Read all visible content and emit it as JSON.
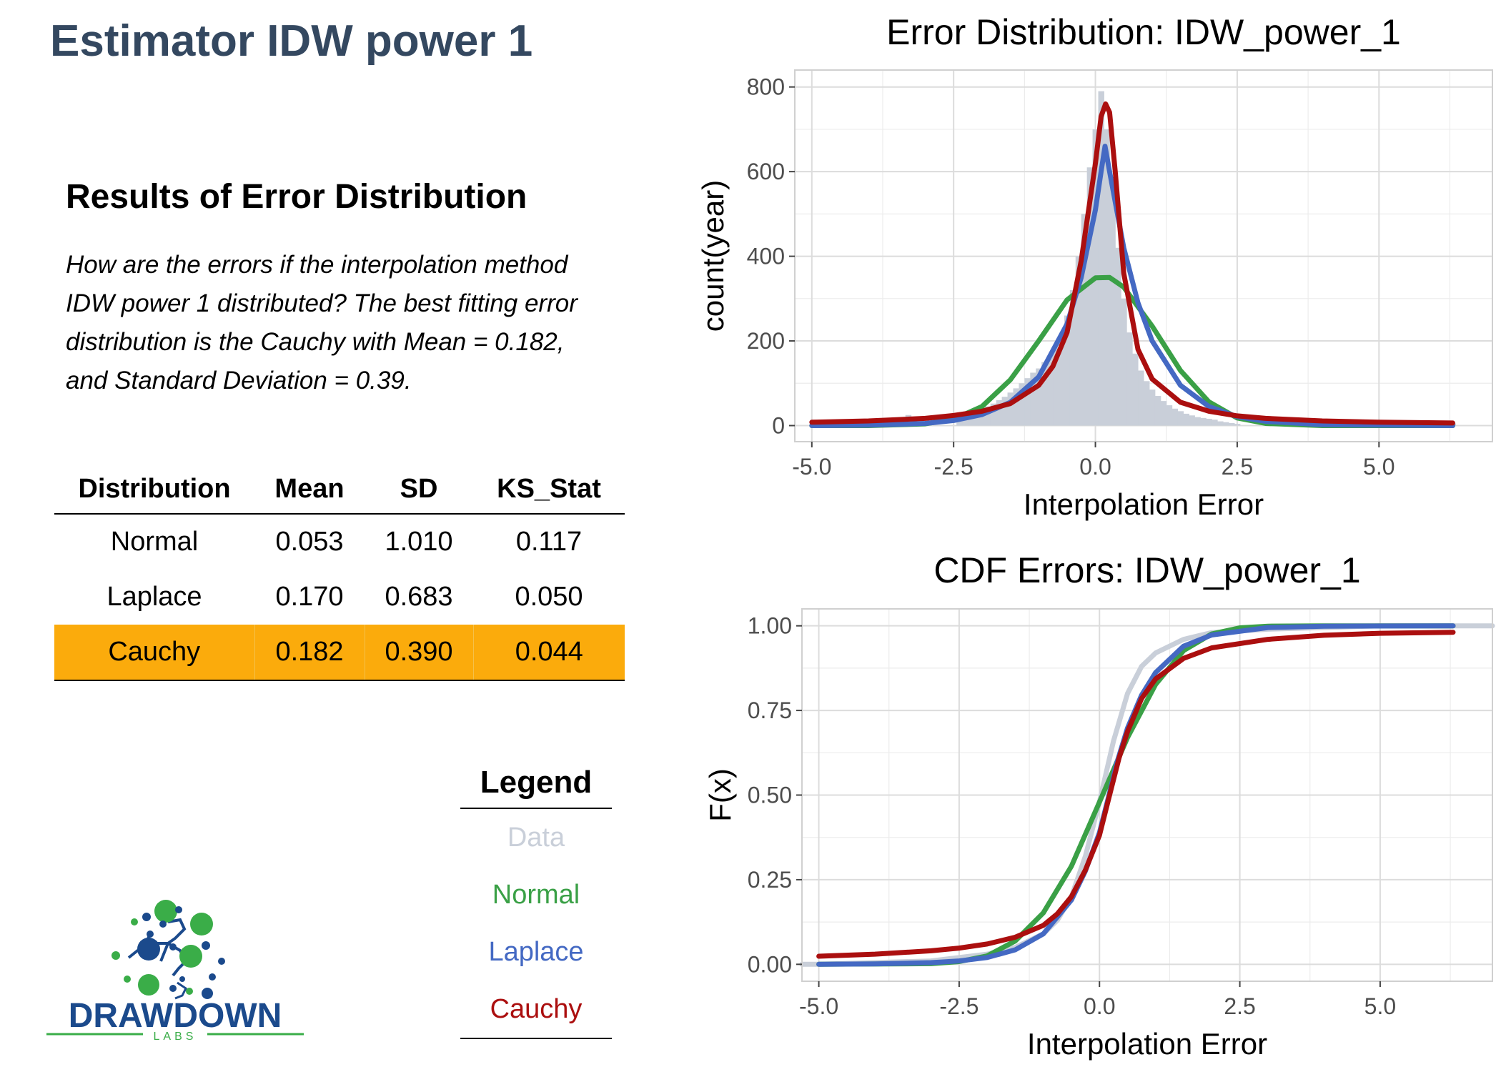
{
  "page": {
    "title": "Estimator IDW power 1"
  },
  "results": {
    "heading": "Results of Error Distribution",
    "description": "How are the errors if the interpolation method IDW power 1 distributed? The best fitting error distribution is the Cauchy with Mean = 0.182, and Standard Deviation = 0.39."
  },
  "table": {
    "headers": [
      "Distribution",
      "Mean",
      "SD",
      "KS_Stat"
    ],
    "rows": [
      [
        "Normal",
        "0.053",
        "1.010",
        "0.117"
      ],
      [
        "Laplace",
        "0.170",
        "0.683",
        "0.050"
      ],
      [
        "Cauchy",
        "0.182",
        "0.390",
        "0.044"
      ]
    ],
    "highlight_color": "#fbab0c"
  },
  "legend": {
    "title": "Legend",
    "items": [
      {
        "label": "Data",
        "color": "#c9cfd9"
      },
      {
        "label": "Normal",
        "color": "#3aa046"
      },
      {
        "label": "Laplace",
        "color": "#4469c3"
      },
      {
        "label": "Cauchy",
        "color": "#ab0f0f"
      }
    ]
  },
  "logo": {
    "text": "DRAWDOWN",
    "subtext": "LABS",
    "primary_color": "#1b4a8c",
    "accent_color": "#3aad48"
  },
  "chart_data": [
    {
      "type": "area",
      "title": "Error Distribution: IDW_power_1",
      "xlabel": "Interpolation Error",
      "ylabel": "count(year)",
      "xlim": [
        -5.3,
        7.0
      ],
      "ylim": [
        -38,
        840
      ],
      "xticks": [
        -5.0,
        -2.5,
        0.0,
        2.5,
        5.0
      ],
      "xtick_labels": [
        "-5.0",
        "-2.5",
        "0.0",
        "2.5",
        "5.0"
      ],
      "yticks": [
        0,
        200,
        400,
        600,
        800
      ],
      "ytick_labels": [
        "0",
        "200",
        "400",
        "600",
        "800"
      ],
      "grid": true,
      "histogram": {
        "color": "#c9cfd9",
        "bin_width": 0.1,
        "x": [
          -4.9,
          -3.3,
          -3.2,
          -2.4,
          -2.3,
          -2.2,
          -2.1,
          -2.0,
          -1.9,
          -1.8,
          -1.7,
          -1.6,
          -1.5,
          -1.4,
          -1.3,
          -1.2,
          -1.1,
          -1.0,
          -0.9,
          -0.8,
          -0.7,
          -0.6,
          -0.5,
          -0.4,
          -0.3,
          -0.2,
          -0.1,
          0.0,
          0.1,
          0.2,
          0.3,
          0.4,
          0.5,
          0.6,
          0.7,
          0.8,
          0.9,
          1.0,
          1.1,
          1.2,
          1.3,
          1.4,
          1.5,
          1.6,
          1.7,
          1.8,
          1.9,
          2.0,
          2.1,
          2.2,
          2.3,
          2.4,
          2.5,
          6.3
        ],
        "counts": [
          5,
          25,
          12,
          20,
          25,
          30,
          35,
          40,
          45,
          52,
          60,
          68,
          78,
          88,
          100,
          112,
          125,
          135,
          150,
          165,
          185,
          215,
          260,
          320,
          400,
          500,
          610,
          700,
          790,
          700,
          580,
          420,
          300,
          220,
          170,
          130,
          105,
          85,
          70,
          58,
          48,
          40,
          34,
          28,
          24,
          20,
          18,
          16,
          14,
          10,
          8,
          6,
          4,
          5
        ]
      },
      "series": [
        {
          "name": "Normal",
          "color": "#3aa046",
          "x": [
            -5.0,
            -4.0,
            -3.0,
            -2.5,
            -2.0,
            -1.5,
            -1.0,
            -0.5,
            0.0,
            0.25,
            0.5,
            1.0,
            1.5,
            2.0,
            2.5,
            3.0,
            4.0,
            5.0,
            6.3
          ],
          "y": [
            0,
            0,
            4,
            15,
            45,
            108,
            200,
            297,
            349,
            350,
            327,
            235,
            130,
            56,
            18,
            5,
            0,
            0,
            0
          ]
        },
        {
          "name": "Laplace",
          "color": "#4469c3",
          "x": [
            -5.0,
            -4.0,
            -3.0,
            -2.5,
            -2.0,
            -1.5,
            -1.0,
            -0.5,
            -0.25,
            0.0,
            0.1,
            0.17,
            0.25,
            0.5,
            0.75,
            1.0,
            1.5,
            2.0,
            2.5,
            3.0,
            4.0,
            5.0,
            6.3
          ],
          "y": [
            0,
            1,
            5,
            12,
            26,
            55,
            115,
            240,
            350,
            510,
            600,
            660,
            600,
            420,
            290,
            200,
            95,
            45,
            21,
            10,
            2,
            1,
            0
          ]
        },
        {
          "name": "Cauchy",
          "color": "#ab0f0f",
          "x": [
            -5.0,
            -4.0,
            -3.0,
            -2.5,
            -2.0,
            -1.5,
            -1.0,
            -0.75,
            -0.5,
            -0.25,
            0.0,
            0.1,
            0.18,
            0.25,
            0.35,
            0.5,
            0.75,
            1.0,
            1.5,
            2.0,
            2.5,
            3.0,
            4.0,
            5.0,
            6.3
          ],
          "y": [
            8,
            11,
            17,
            24,
            34,
            52,
            95,
            140,
            220,
            390,
            620,
            730,
            760,
            740,
            600,
            360,
            180,
            110,
            55,
            34,
            23,
            17,
            11,
            8,
            6
          ]
        }
      ]
    },
    {
      "type": "line",
      "title": "CDF Errors: IDW_power_1",
      "xlabel": "Interpolation Error",
      "ylabel": "F(x)",
      "xlim": [
        -5.3,
        7.0
      ],
      "ylim": [
        -0.05,
        1.05
      ],
      "xticks": [
        -5.0,
        -2.5,
        0.0,
        2.5,
        5.0
      ],
      "xtick_labels": [
        "-5.0",
        "-2.5",
        "0.0",
        "2.5",
        "5.0"
      ],
      "yticks": [
        0,
        0.25,
        0.5,
        0.75,
        1.0
      ],
      "ytick_labels": [
        "0.00",
        "0.25",
        "0.50",
        "0.75",
        "1.00"
      ],
      "grid": true,
      "series": [
        {
          "name": "Data",
          "color": "#c9cfd9",
          "x": [
            -5.3,
            -5.0,
            -3.0,
            -2.0,
            -1.5,
            -1.0,
            -0.75,
            -0.5,
            -0.25,
            0.0,
            0.25,
            0.5,
            0.75,
            1.0,
            1.5,
            2.0,
            3.0,
            5.0,
            7.0
          ],
          "y": [
            0.0,
            0.0,
            0.01,
            0.03,
            0.05,
            0.09,
            0.13,
            0.2,
            0.32,
            0.48,
            0.66,
            0.8,
            0.88,
            0.92,
            0.96,
            0.98,
            0.99,
            1.0,
            1.0
          ]
        },
        {
          "name": "Normal",
          "color": "#3aa046",
          "x": [
            -5.0,
            -3.0,
            -2.5,
            -2.0,
            -1.5,
            -1.0,
            -0.5,
            0.0,
            0.5,
            1.0,
            1.5,
            2.0,
            2.5,
            3.0,
            4.0,
            6.3
          ],
          "y": [
            0.0,
            0.002,
            0.008,
            0.025,
            0.069,
            0.152,
            0.29,
            0.479,
            0.67,
            0.827,
            0.927,
            0.976,
            0.994,
            0.999,
            1.0,
            1.0
          ]
        },
        {
          "name": "Laplace",
          "color": "#4469c3",
          "x": [
            -5.0,
            -4.0,
            -3.0,
            -2.5,
            -2.0,
            -1.5,
            -1.0,
            -0.5,
            -0.25,
            0.0,
            0.17,
            0.3,
            0.5,
            0.75,
            1.0,
            1.5,
            2.0,
            3.0,
            4.0,
            6.3
          ],
          "y": [
            0.0,
            0.001,
            0.005,
            0.01,
            0.02,
            0.043,
            0.09,
            0.19,
            0.276,
            0.389,
            0.5,
            0.59,
            0.698,
            0.795,
            0.862,
            0.94,
            0.973,
            0.995,
            0.999,
            1.0
          ]
        },
        {
          "name": "Cauchy",
          "color": "#ab0f0f",
          "x": [
            -5.0,
            -4.0,
            -3.0,
            -2.5,
            -2.0,
            -1.5,
            -1.0,
            -0.75,
            -0.5,
            -0.25,
            0.0,
            0.18,
            0.35,
            0.5,
            0.75,
            1.0,
            1.5,
            2.0,
            3.0,
            4.0,
            5.0,
            6.3
          ],
          "y": [
            0.024,
            0.03,
            0.04,
            0.048,
            0.06,
            0.08,
            0.115,
            0.149,
            0.2,
            0.279,
            0.381,
            0.5,
            0.61,
            0.688,
            0.785,
            0.843,
            0.904,
            0.935,
            0.96,
            0.972,
            0.978,
            0.981
          ]
        }
      ]
    }
  ]
}
